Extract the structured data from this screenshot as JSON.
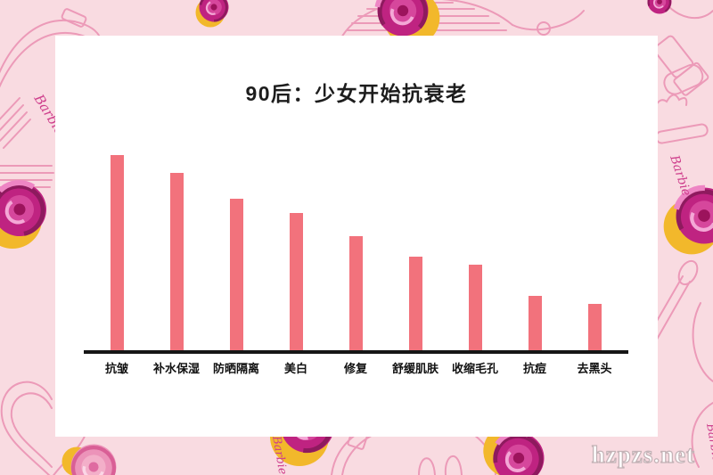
{
  "page": {
    "watermark": "hzpzs.net",
    "background_color": "#f9dbe1",
    "card_color": "#ffffff"
  },
  "decorations": {
    "barbie_script": "Barbie",
    "rose_color": "#bf2381",
    "rose_soft_color": "#ec93b9",
    "line_art_color": "#ec9ab8",
    "accent_yellow": "#f2b82b"
  },
  "chart_data": {
    "type": "bar",
    "title": "90后：少女开始抗衰老",
    "categories": [
      "抗皱",
      "补水保湿",
      "防晒隔离",
      "美白",
      "修复",
      "舒缓肌肤",
      "收缩毛孔",
      "抗痘",
      "去黑头"
    ],
    "values": [
      100,
      91,
      78,
      71,
      59,
      49,
      45,
      29,
      25
    ],
    "value_scale": "relative popularity, tallest bar = 100 (no numeric axis shown in source image)",
    "xlabel": "",
    "ylabel": "",
    "ylim": [
      0,
      100
    ],
    "grid": false,
    "legend": "none",
    "value_labels_shown": false,
    "bar_color": "#f2727c",
    "axis_color": "#161616"
  }
}
